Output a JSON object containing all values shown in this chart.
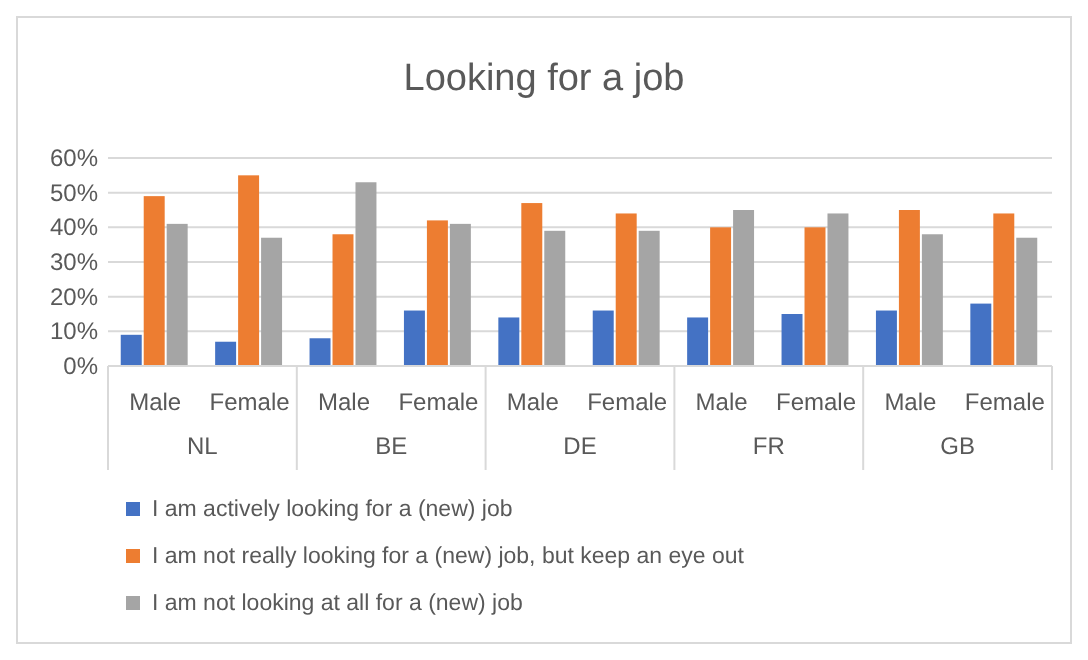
{
  "chart_data": {
    "type": "bar",
    "title": "Looking for a job",
    "categories": [
      "Male",
      "Female",
      "Male",
      "Female",
      "Male",
      "Female",
      "Male",
      "Female",
      "Male",
      "Female"
    ],
    "annotations": [
      "NL",
      "BE",
      "DE",
      "FR",
      "GB"
    ],
    "series": [
      {
        "name": "I am actively looking for a (new) job",
        "color": "#4472c4",
        "values": [
          9,
          7,
          8,
          16,
          14,
          16,
          14,
          15,
          16,
          18
        ]
      },
      {
        "name": "I am not really looking for a (new) job, but keep an eye out",
        "color": "#ed7d31",
        "values": [
          49,
          55,
          38,
          42,
          47,
          44,
          40,
          40,
          45,
          44
        ]
      },
      {
        "name": "I am not looking at all for a (new) job",
        "color": "#a5a5a5",
        "values": [
          41,
          37,
          53,
          41,
          39,
          39,
          45,
          44,
          38,
          37
        ]
      }
    ],
    "ylim": [
      0,
      60
    ],
    "yticks": [
      {
        "value": 0,
        "label": "0%"
      },
      {
        "value": 10,
        "label": "10%"
      },
      {
        "value": 20,
        "label": "20%"
      },
      {
        "value": 30,
        "label": "30%"
      },
      {
        "value": 40,
        "label": "40%"
      },
      {
        "value": 50,
        "label": "50%"
      },
      {
        "value": 60,
        "label": "60%"
      }
    ],
    "grid": "y",
    "legend": "bottom"
  }
}
